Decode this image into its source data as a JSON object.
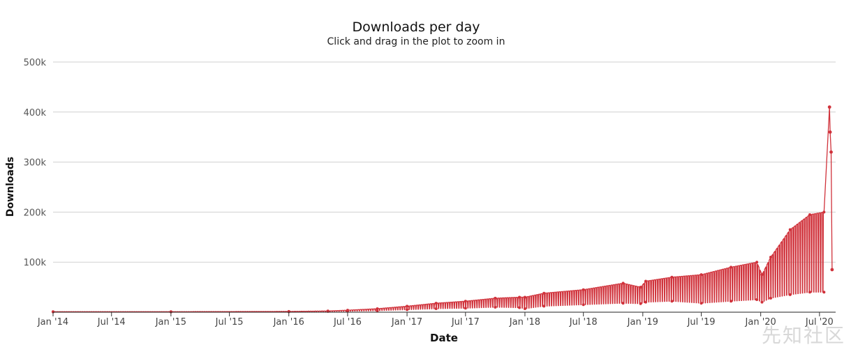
{
  "chart_data": {
    "type": "line",
    "title": "Downloads per day",
    "subtitle": "Click and drag in the plot to zoom in",
    "xlabel": "Date",
    "ylabel": "Downloads",
    "xlim": [
      "2014-01-01",
      "2020-08-20"
    ],
    "ylim": [
      0,
      500000
    ],
    "y_ticks": [
      {
        "value": 100000,
        "label": "100k"
      },
      {
        "value": 200000,
        "label": "200k"
      },
      {
        "value": 300000,
        "label": "300k"
      },
      {
        "value": 400000,
        "label": "400k"
      },
      {
        "value": 500000,
        "label": "500k"
      }
    ],
    "x_ticks": [
      {
        "date": "2014-01-01",
        "label": "Jan '14"
      },
      {
        "date": "2014-07-01",
        "label": "Jul '14"
      },
      {
        "date": "2015-01-01",
        "label": "Jan '15"
      },
      {
        "date": "2015-07-01",
        "label": "Jul '15"
      },
      {
        "date": "2016-01-01",
        "label": "Jan '16"
      },
      {
        "date": "2016-07-01",
        "label": "Jul '16"
      },
      {
        "date": "2017-01-01",
        "label": "Jan '17"
      },
      {
        "date": "2017-07-01",
        "label": "Jul '17"
      },
      {
        "date": "2018-01-01",
        "label": "Jan '18"
      },
      {
        "date": "2018-07-01",
        "label": "Jul '18"
      },
      {
        "date": "2019-01-01",
        "label": "Jan '19"
      },
      {
        "date": "2019-07-01",
        "label": "Jul '19"
      },
      {
        "date": "2020-01-01",
        "label": "Jan '20"
      },
      {
        "date": "2020-07-01",
        "label": "Jul '20"
      }
    ],
    "grid": true,
    "legend": "none",
    "series": [
      {
        "color": "#d0323b",
        "points": [
          {
            "date": "2014-01-01",
            "high": 1000,
            "low": 500
          },
          {
            "date": "2015-01-01",
            "high": 1000,
            "low": 600
          },
          {
            "date": "2016-01-01",
            "high": 1500,
            "low": 800
          },
          {
            "date": "2016-05-01",
            "high": 2500,
            "low": 1500
          },
          {
            "date": "2016-07-01",
            "high": 4000,
            "low": 2000
          },
          {
            "date": "2016-10-01",
            "high": 7000,
            "low": 3000
          },
          {
            "date": "2017-01-01",
            "high": 12000,
            "low": 5000
          },
          {
            "date": "2017-04-01",
            "high": 18000,
            "low": 7000
          },
          {
            "date": "2017-07-01",
            "high": 22000,
            "low": 8000
          },
          {
            "date": "2017-10-01",
            "high": 28000,
            "low": 10000
          },
          {
            "date": "2017-12-15",
            "high": 30000,
            "low": 9000
          },
          {
            "date": "2018-01-01",
            "high": 30000,
            "low": 7000
          },
          {
            "date": "2018-03-01",
            "high": 38000,
            "low": 12000
          },
          {
            "date": "2018-07-01",
            "high": 45000,
            "low": 15000
          },
          {
            "date": "2018-11-01",
            "high": 58000,
            "low": 18000
          },
          {
            "date": "2018-12-25",
            "high": 50000,
            "low": 17000
          },
          {
            "date": "2019-01-10",
            "high": 62000,
            "low": 20000
          },
          {
            "date": "2019-04-01",
            "high": 70000,
            "low": 22000
          },
          {
            "date": "2019-07-01",
            "high": 75000,
            "low": 18000
          },
          {
            "date": "2019-10-01",
            "high": 90000,
            "low": 22000
          },
          {
            "date": "2019-12-20",
            "high": 100000,
            "low": 25000
          },
          {
            "date": "2020-01-05",
            "high": 75000,
            "low": 20000
          },
          {
            "date": "2020-02-01",
            "high": 110000,
            "low": 28000
          },
          {
            "date": "2020-04-01",
            "high": 165000,
            "low": 35000
          },
          {
            "date": "2020-06-01",
            "high": 195000,
            "low": 40000
          },
          {
            "date": "2020-07-15",
            "high": 200000,
            "low": 40000
          }
        ],
        "spike": [
          {
            "date": "2020-08-01",
            "value": 410000
          },
          {
            "date": "2020-08-03",
            "value": 360000
          },
          {
            "date": "2020-08-06",
            "value": 320000
          },
          {
            "date": "2020-08-09",
            "value": 85000
          }
        ]
      }
    ]
  },
  "watermark": "先知社区"
}
